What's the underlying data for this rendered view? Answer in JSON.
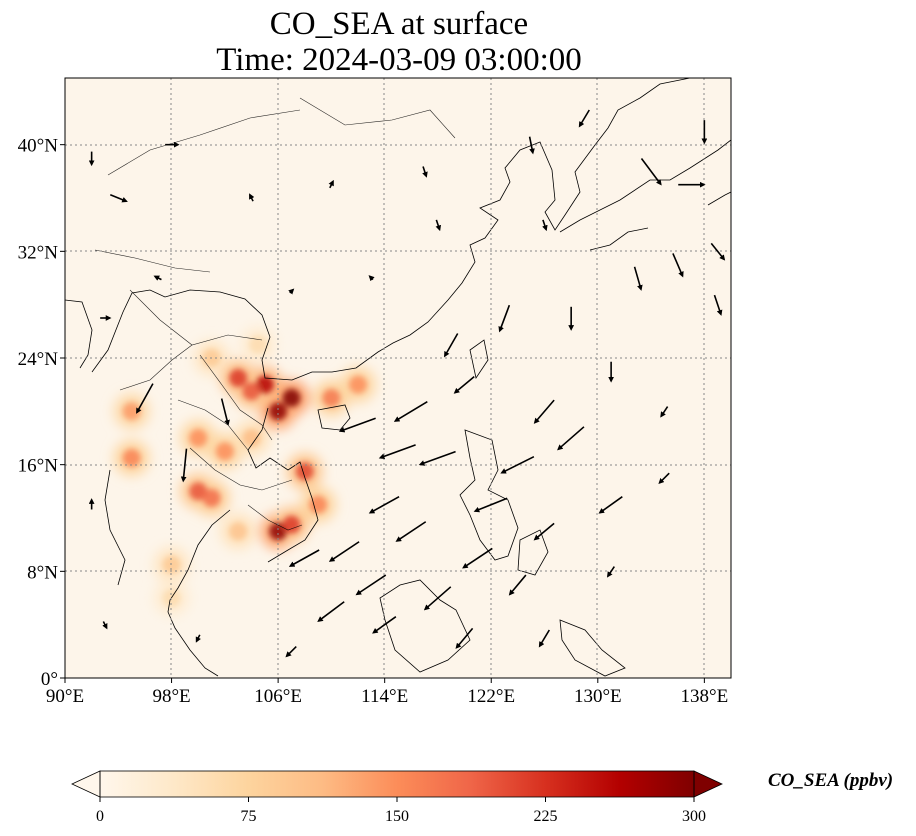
{
  "title": {
    "line1": "CO_SEA at surface",
    "line2": "Time: 2024-03-09 03:00:00"
  },
  "map": {
    "type": "heatmap",
    "lon_range": [
      90,
      140
    ],
    "lat_range": [
      0,
      45
    ],
    "lon_ticks": [
      90,
      98,
      106,
      114,
      122,
      130,
      138
    ],
    "lon_tick_labels": [
      "90°E",
      "98°E",
      "106°E",
      "114°E",
      "122°E",
      "130°E",
      "138°E"
    ],
    "lat_ticks": [
      0,
      8,
      16,
      24,
      32,
      40
    ],
    "lat_tick_labels": [
      "0°",
      "8°N",
      "16°N",
      "24°N",
      "32°N",
      "40°N"
    ],
    "grid": true
  },
  "chart_data": {
    "type": "heatmap",
    "variable": "CO_SEA",
    "units": "ppbv",
    "hotspots": [
      {
        "lon": 107,
        "lat": 21,
        "value": 300
      },
      {
        "lon": 106,
        "lat": 20,
        "value": 290
      },
      {
        "lon": 105,
        "lat": 22,
        "value": 260
      },
      {
        "lon": 104,
        "lat": 21.5,
        "value": 200
      },
      {
        "lon": 103,
        "lat": 22.5,
        "value": 220
      },
      {
        "lon": 106,
        "lat": 11,
        "value": 290
      },
      {
        "lon": 107,
        "lat": 11.5,
        "value": 220
      },
      {
        "lon": 108,
        "lat": 15.5,
        "value": 210
      },
      {
        "lon": 109,
        "lat": 13,
        "value": 160
      },
      {
        "lon": 100,
        "lat": 14,
        "value": 200
      },
      {
        "lon": 101,
        "lat": 13.5,
        "value": 180
      },
      {
        "lon": 100,
        "lat": 18,
        "value": 150
      },
      {
        "lon": 102,
        "lat": 17,
        "value": 150
      },
      {
        "lon": 104,
        "lat": 18,
        "value": 110
      },
      {
        "lon": 95,
        "lat": 16.5,
        "value": 160
      },
      {
        "lon": 95,
        "lat": 20,
        "value": 140
      },
      {
        "lon": 110,
        "lat": 21,
        "value": 170
      },
      {
        "lon": 112,
        "lat": 22,
        "value": 150
      },
      {
        "lon": 103,
        "lat": 11,
        "value": 100
      },
      {
        "lon": 98,
        "lat": 8.5,
        "value": 90
      },
      {
        "lon": 98,
        "lat": 6,
        "value": 60
      },
      {
        "lon": 101,
        "lat": 24,
        "value": 90
      },
      {
        "lon": 104.5,
        "lat": 25,
        "value": 60
      }
    ],
    "colorbar": {
      "min": 0,
      "max": 300,
      "ticks": [
        0,
        75,
        150,
        225,
        300
      ],
      "tick_labels": [
        "0",
        "75",
        "150",
        "225",
        "300"
      ],
      "label": "CO_SEA (ppbv)",
      "colormap": "OrRd",
      "stops": [
        "#fff7ec",
        "#fee8c8",
        "#fdd49e",
        "#fdbb84",
        "#fc8d59",
        "#ef6548",
        "#d7301f",
        "#b30000",
        "#7f0000"
      ],
      "extend": "both"
    },
    "wind_vectors": [
      {
        "lon": 96,
        "lat": 21,
        "u": -5,
        "v": -9
      },
      {
        "lon": 99,
        "lat": 16,
        "u": -1,
        "v": -10
      },
      {
        "lon": 102,
        "lat": 20,
        "u": 2,
        "v": -8
      },
      {
        "lon": 112,
        "lat": 19,
        "u": -11,
        "v": -4
      },
      {
        "lon": 115,
        "lat": 17,
        "u": -11,
        "v": -4
      },
      {
        "lon": 116,
        "lat": 20,
        "u": -10,
        "v": -6
      },
      {
        "lon": 118,
        "lat": 16.5,
        "u": -11,
        "v": -4
      },
      {
        "lon": 114,
        "lat": 13,
        "u": -9,
        "v": -5
      },
      {
        "lon": 116,
        "lat": 11,
        "u": -9,
        "v": -6
      },
      {
        "lon": 111,
        "lat": 9.5,
        "u": -9,
        "v": -6
      },
      {
        "lon": 108,
        "lat": 9,
        "u": -9,
        "v": -5
      },
      {
        "lon": 113,
        "lat": 7,
        "u": -9,
        "v": -6
      },
      {
        "lon": 118,
        "lat": 6,
        "u": -8,
        "v": -7
      },
      {
        "lon": 110,
        "lat": 5,
        "u": -8,
        "v": -6
      },
      {
        "lon": 121,
        "lat": 9,
        "u": -9,
        "v": -6
      },
      {
        "lon": 122,
        "lat": 13,
        "u": -10,
        "v": -4
      },
      {
        "lon": 124,
        "lat": 16,
        "u": -10,
        "v": -5
      },
      {
        "lon": 128,
        "lat": 18,
        "u": -8,
        "v": -7
      },
      {
        "lon": 126,
        "lat": 20,
        "u": -6,
        "v": -7
      },
      {
        "lon": 120,
        "lat": 22,
        "u": -6,
        "v": -5
      },
      {
        "lon": 119,
        "lat": 25,
        "u": -4,
        "v": -7
      },
      {
        "lon": 123,
        "lat": 27,
        "u": -3,
        "v": -8
      },
      {
        "lon": 128,
        "lat": 27,
        "u": 0,
        "v": -7
      },
      {
        "lon": 131,
        "lat": 23,
        "u": 0,
        "v": -6
      },
      {
        "lon": 131,
        "lat": 13,
        "u": -7,
        "v": -5
      },
      {
        "lon": 126,
        "lat": 11,
        "u": -6,
        "v": -5
      },
      {
        "lon": 124,
        "lat": 7,
        "u": -5,
        "v": -6
      },
      {
        "lon": 120,
        "lat": 3,
        "u": -5,
        "v": -6
      },
      {
        "lon": 114,
        "lat": 4,
        "u": -7,
        "v": -5
      },
      {
        "lon": 126,
        "lat": 3,
        "u": -3,
        "v": -5
      },
      {
        "lon": 133,
        "lat": 30,
        "u": 2,
        "v": -7
      },
      {
        "lon": 136,
        "lat": 31,
        "u": 3,
        "v": -7
      },
      {
        "lon": 139,
        "lat": 28,
        "u": 2,
        "v": -6
      },
      {
        "lon": 134,
        "lat": 38,
        "u": 6,
        "v": -8
      },
      {
        "lon": 137,
        "lat": 37,
        "u": 8,
        "v": 0
      },
      {
        "lon": 138,
        "lat": 41,
        "u": 0,
        "v": -7
      },
      {
        "lon": 139,
        "lat": 32,
        "u": 4,
        "v": -5
      },
      {
        "lon": 129,
        "lat": 42,
        "u": -3,
        "v": -5
      },
      {
        "lon": 125,
        "lat": 40,
        "u": 1,
        "v": -5
      },
      {
        "lon": 117,
        "lat": 38,
        "u": 1,
        "v": -3
      },
      {
        "lon": 110,
        "lat": 37,
        "u": 1,
        "v": 2
      },
      {
        "lon": 104,
        "lat": 36,
        "u": -1,
        "v": 2
      },
      {
        "lon": 98,
        "lat": 40,
        "u": 4,
        "v": 0
      },
      {
        "lon": 92,
        "lat": 39,
        "u": 0,
        "v": -4
      },
      {
        "lon": 94,
        "lat": 36,
        "u": 5,
        "v": -2
      },
      {
        "lon": 97,
        "lat": 30,
        "u": -2,
        "v": 1
      },
      {
        "lon": 93,
        "lat": 27,
        "u": 3,
        "v": 0
      },
      {
        "lon": 107,
        "lat": 29,
        "u": 1,
        "v": 1
      },
      {
        "lon": 113,
        "lat": 30,
        "u": -1,
        "v": 1
      },
      {
        "lon": 118,
        "lat": 34,
        "u": 1,
        "v": -3
      },
      {
        "lon": 126,
        "lat": 34,
        "u": 1,
        "v": -3
      },
      {
        "lon": 92,
        "lat": 13,
        "u": 0,
        "v": 3
      },
      {
        "lon": 93,
        "lat": 4,
        "u": 1,
        "v": -2
      },
      {
        "lon": 100,
        "lat": 3,
        "u": -1,
        "v": -2
      },
      {
        "lon": 107,
        "lat": 2,
        "u": -3,
        "v": -3
      },
      {
        "lon": 135,
        "lat": 15,
        "u": -3,
        "v": -3
      },
      {
        "lon": 131,
        "lat": 8,
        "u": -2,
        "v": -3
      },
      {
        "lon": 135,
        "lat": 20,
        "u": -2,
        "v": -3
      }
    ]
  }
}
